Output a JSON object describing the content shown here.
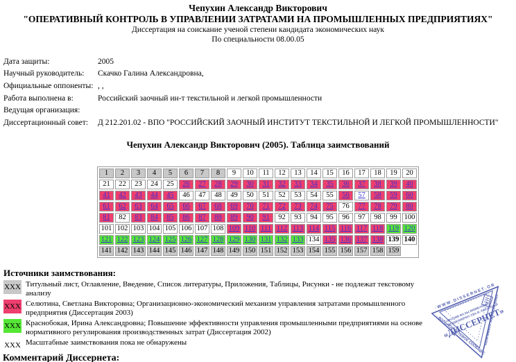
{
  "header": {
    "author": "Чепухин Александр Викторович",
    "title": "\"ОПЕРАТИВНЫЙ КОНТРОЛЬ В УПРАВЛЕНИИ ЗАТРАТАМИ НА ПРОМЫШЛЕННЫХ ПРЕДПРИЯТИЯХ\"",
    "subtitle1": "Диссертация на соискание ученой степени кандидата экономических наук",
    "subtitle2": "По специальности 08.00.05"
  },
  "meta": {
    "rows": [
      {
        "label": "Дата защиты:",
        "value": "2005"
      },
      {
        "label": "Научный руководитель:",
        "value": "Скачко Галина Александровна,"
      },
      {
        "label": "Официальные оппоненты:",
        "value": ", ,"
      },
      {
        "label": "Работа выполнена в:",
        "value": "Российский заочный ин-т текстильной и легкой промышленности"
      },
      {
        "label": "Ведущая организация:",
        "value": ""
      },
      {
        "label": "Диссертационный совет:",
        "value": "Д 212.201.02 - ВПО \"РОССИЙСКИЙ ЗАОЧНЫЙ ИНСТИТУТ ТЕКСТИЛЬНОЙ И ЛЕГКОЙ ПРОМЫШЛЕННОСТИ\""
      }
    ]
  },
  "table": {
    "heading": "Чепухин Александр Викторович (2005). Таблица заимствований",
    "columns": 20,
    "first_page": 1,
    "last_page": 159,
    "segments": [
      {
        "from": 1,
        "to": 8,
        "bg": "gray",
        "link": false
      },
      {
        "from": 9,
        "to": 25,
        "bg": "white",
        "link": false
      },
      {
        "from": 26,
        "to": 45,
        "bg": "pink",
        "link": true
      },
      {
        "from": 46,
        "to": 55,
        "bg": "white",
        "link": false
      },
      {
        "from": 56,
        "to": 56,
        "bg": "pink",
        "link": true
      },
      {
        "from": 57,
        "to": 57,
        "bg": "white",
        "link": true
      },
      {
        "from": 58,
        "to": 75,
        "bg": "pink",
        "link": true
      },
      {
        "from": 76,
        "to": 76,
        "bg": "white",
        "link": false
      },
      {
        "from": 77,
        "to": 81,
        "bg": "pink",
        "link": true
      },
      {
        "from": 82,
        "to": 82,
        "bg": "white",
        "link": false
      },
      {
        "from": 83,
        "to": 91,
        "bg": "pink",
        "link": true
      },
      {
        "from": 92,
        "to": 108,
        "bg": "white",
        "link": false
      },
      {
        "from": 109,
        "to": 118,
        "bg": "pink",
        "link": true
      },
      {
        "from": 119,
        "to": 133,
        "bg": "green",
        "link": true
      },
      {
        "from": 134,
        "to": 134,
        "bg": "white",
        "link": false
      },
      {
        "from": 135,
        "to": 138,
        "bg": "pink",
        "link": true
      },
      {
        "from": 139,
        "to": 140,
        "bg": "white",
        "link": false,
        "bold": true
      },
      {
        "from": 141,
        "to": 159,
        "bg": "gray",
        "link": false
      }
    ]
  },
  "legend": {
    "heading": "Источники заимствования:",
    "marker": "XXX",
    "items": [
      {
        "color": "gray",
        "text": "Титульный лист, Оглавление, Введение, Список литературы, Приложения, Таблицы, Рисунки - не подлежат текстовому анализу"
      },
      {
        "color": "pink",
        "text": "Селютина, Светлана Викторовна; Организационно-экономический механизм управления затратами промышленного предприятия (Диссертация 2003)"
      },
      {
        "color": "green",
        "text": "Краснобокая, Ирина Александровна; Повышение эффективности управления промышленными предприятиями на основе нормативного регулирования производственных затрат (Диссертация 2002)"
      },
      {
        "color": "none",
        "text": "Масштабные заимствования пока не обнаружены"
      }
    ]
  },
  "footer": {
    "comment_heading": "Комментарий Диссернета:"
  },
  "stamp": {
    "color": "#3b49a5",
    "line_top": "· W W W . D I S S E R N E T . O R G ·",
    "line_left": "· ВОЛЬНОЕ СЕТЕВОЕ СООБЩЕСТВО ·",
    "line_right": "· FREE NETWORK COMMUNITY ·",
    "small_1": "ПРОТИВ ФАЛЬСИФИКАЦИЙ",
    "small_2": "МОШЕННИЧЕСТВА И ЛЖЕНАУКИ",
    "center": "«ДИССЕРНЕТ»"
  },
  "colors": {
    "pink": "#ee3f6e",
    "green": "#55e636",
    "gray": "#c8c8c8",
    "link": "#3a2fd0",
    "stamp": "#3b49a5"
  }
}
